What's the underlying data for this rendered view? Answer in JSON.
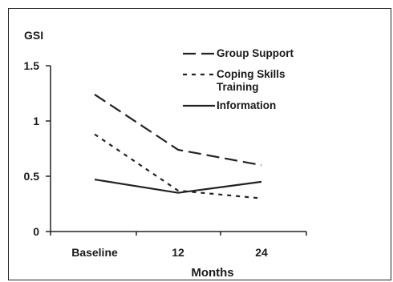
{
  "chart_data": {
    "type": "line",
    "title": "GSI",
    "xlabel": "Months",
    "ylabel": "",
    "categories": [
      "Baseline",
      "12",
      "24"
    ],
    "yticks": [
      "0",
      "0.5",
      "1",
      "1.5"
    ],
    "ylim": [
      0,
      1.5
    ],
    "grid": false,
    "legend_position": "top-right",
    "series": [
      {
        "name": "Group Support",
        "values": [
          1.24,
          0.74,
          0.6
        ],
        "style": "long-dash",
        "color": "#222222"
      },
      {
        "name": "Coping Skills Training",
        "values": [
          0.88,
          0.37,
          0.3
        ],
        "style": "short-dash",
        "color": "#222222"
      },
      {
        "name": "Information",
        "values": [
          0.47,
          0.35,
          0.45
        ],
        "style": "solid",
        "color": "#222222"
      }
    ],
    "legend_lines": [
      [
        "Group Support"
      ],
      [
        "Coping Skills",
        "Training"
      ],
      [
        "Information"
      ]
    ]
  }
}
